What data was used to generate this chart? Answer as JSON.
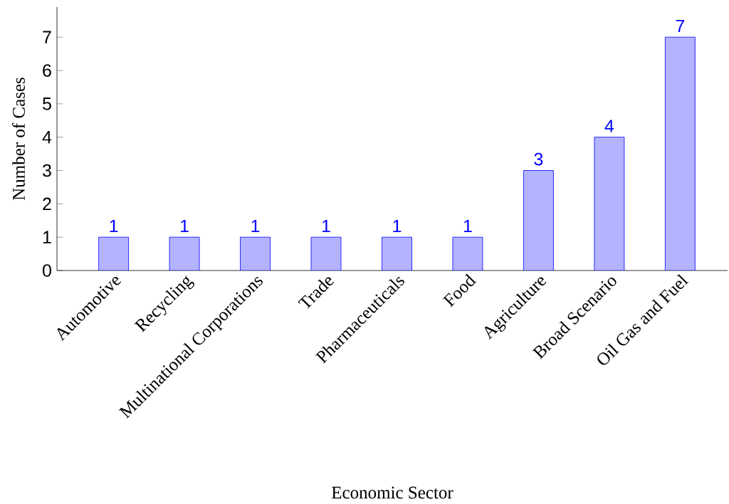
{
  "chart_data": {
    "type": "bar",
    "xlabel": "Economic Sector",
    "ylabel": "Number of Cases",
    "categories": [
      "Automotive",
      "Recycling",
      "Multinational Corporations",
      "Trade",
      "Pharmaceuticals",
      "Food",
      "Agriculture",
      "Broad Scenario",
      "Oil Gas and Fuel"
    ],
    "values": [
      1,
      1,
      1,
      1,
      1,
      1,
      3,
      4,
      7
    ],
    "color": "#b3b3ff",
    "ylim": [
      0,
      7.9
    ],
    "yticks": [
      0,
      1,
      2,
      3,
      4,
      5,
      6,
      7
    ],
    "data_labels": true
  }
}
